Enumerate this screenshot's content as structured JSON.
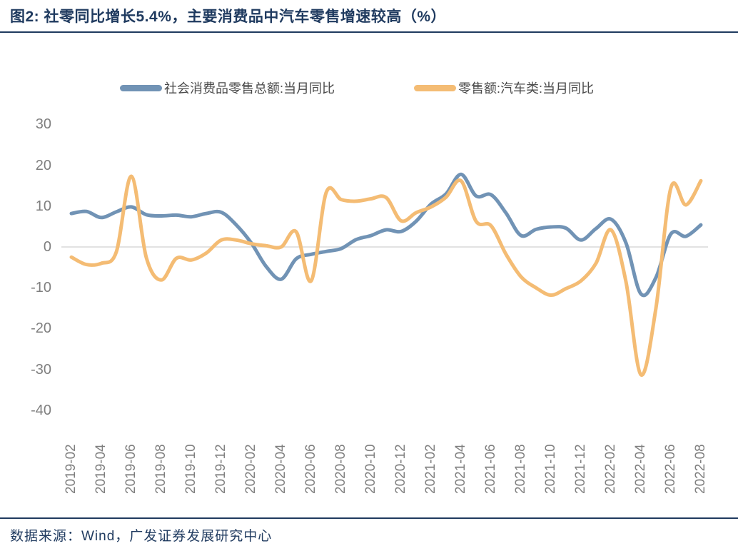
{
  "header": {
    "title": "图2:  社零同比增长5.4%，主要消费品中汽车零售增速较高（%）"
  },
  "legend": {
    "items": [
      {
        "label": "社会消费品零售总额:当月同比",
        "color": "#7193b5"
      },
      {
        "label": "零售额:汽车类:当月同比",
        "color": "#f4bc74"
      }
    ]
  },
  "footer": {
    "source": "数据来源：Wind，广发证券发展研究中心"
  },
  "colors": {
    "title": "#1f3a5f",
    "rule": "#1f3a5f",
    "axis_text": "#7f7f7f",
    "gridline": "#d9d9d9",
    "background": "#ffffff"
  },
  "chart_data": {
    "type": "line",
    "title": "社零同比增长5.4%，主要消费品中汽车零售增速较高（%）",
    "xlabel": "",
    "ylabel": "",
    "ylim": [
      -40,
      30
    ],
    "y_ticks": [
      30,
      20,
      10,
      0,
      -10,
      -20,
      -30,
      -40
    ],
    "x_tick_every": 2,
    "grid": "zero-line-only",
    "legend_position": "top",
    "line_style": "smooth",
    "x": [
      "2019-02",
      "2019-03",
      "2019-04",
      "2019-05",
      "2019-06",
      "2019-07",
      "2019-08",
      "2019-09",
      "2019-10",
      "2019-11",
      "2019-12",
      "2020-01",
      "2020-02",
      "2020-03",
      "2020-04",
      "2020-05",
      "2020-06",
      "2020-07",
      "2020-08",
      "2020-09",
      "2020-10",
      "2020-11",
      "2020-12",
      "2021-01",
      "2021-02",
      "2021-03",
      "2021-04",
      "2021-05",
      "2021-06",
      "2021-07",
      "2021-08",
      "2021-09",
      "2021-10",
      "2021-11",
      "2021-12",
      "2022-01",
      "2022-02",
      "2022-03",
      "2022-04",
      "2022-05",
      "2022-06",
      "2022-07",
      "2022-08"
    ],
    "series": [
      {
        "name": "社会消费品零售总额:当月同比",
        "color": "#7193b5",
        "values": [
          8.2,
          8.7,
          7.2,
          8.6,
          9.8,
          7.9,
          7.6,
          7.8,
          7.4,
          8.2,
          8.5,
          5.4,
          1.0,
          -4.8,
          -7.9,
          -2.9,
          -1.8,
          -1.1,
          -0.4,
          1.8,
          2.8,
          4.2,
          3.8,
          6.3,
          10.5,
          13.0,
          17.8,
          12.5,
          12.8,
          8.3,
          2.8,
          4.3,
          4.9,
          4.6,
          1.7,
          4.5,
          6.8,
          1.0,
          -11.5,
          -7.5,
          3.2,
          2.6,
          5.4
        ]
      },
      {
        "name": "零售额:汽车类:当月同比",
        "color": "#f4bc74",
        "values": [
          -2.5,
          -4.3,
          -4.0,
          -1.2,
          17.3,
          -2.6,
          -8.1,
          -2.8,
          -3.2,
          -1.5,
          1.7,
          1.7,
          0.8,
          0.3,
          0.0,
          3.7,
          -8.3,
          13.3,
          11.6,
          11.2,
          11.8,
          12.1,
          6.4,
          8.4,
          9.8,
          12.2,
          16.2,
          6.3,
          5.2,
          -1.8,
          -7.3,
          -10.0,
          -11.8,
          -10.2,
          -8.3,
          -4.0,
          4.2,
          -8.5,
          -31.3,
          -15.0,
          14.5,
          10.3,
          16.2
        ]
      }
    ]
  }
}
